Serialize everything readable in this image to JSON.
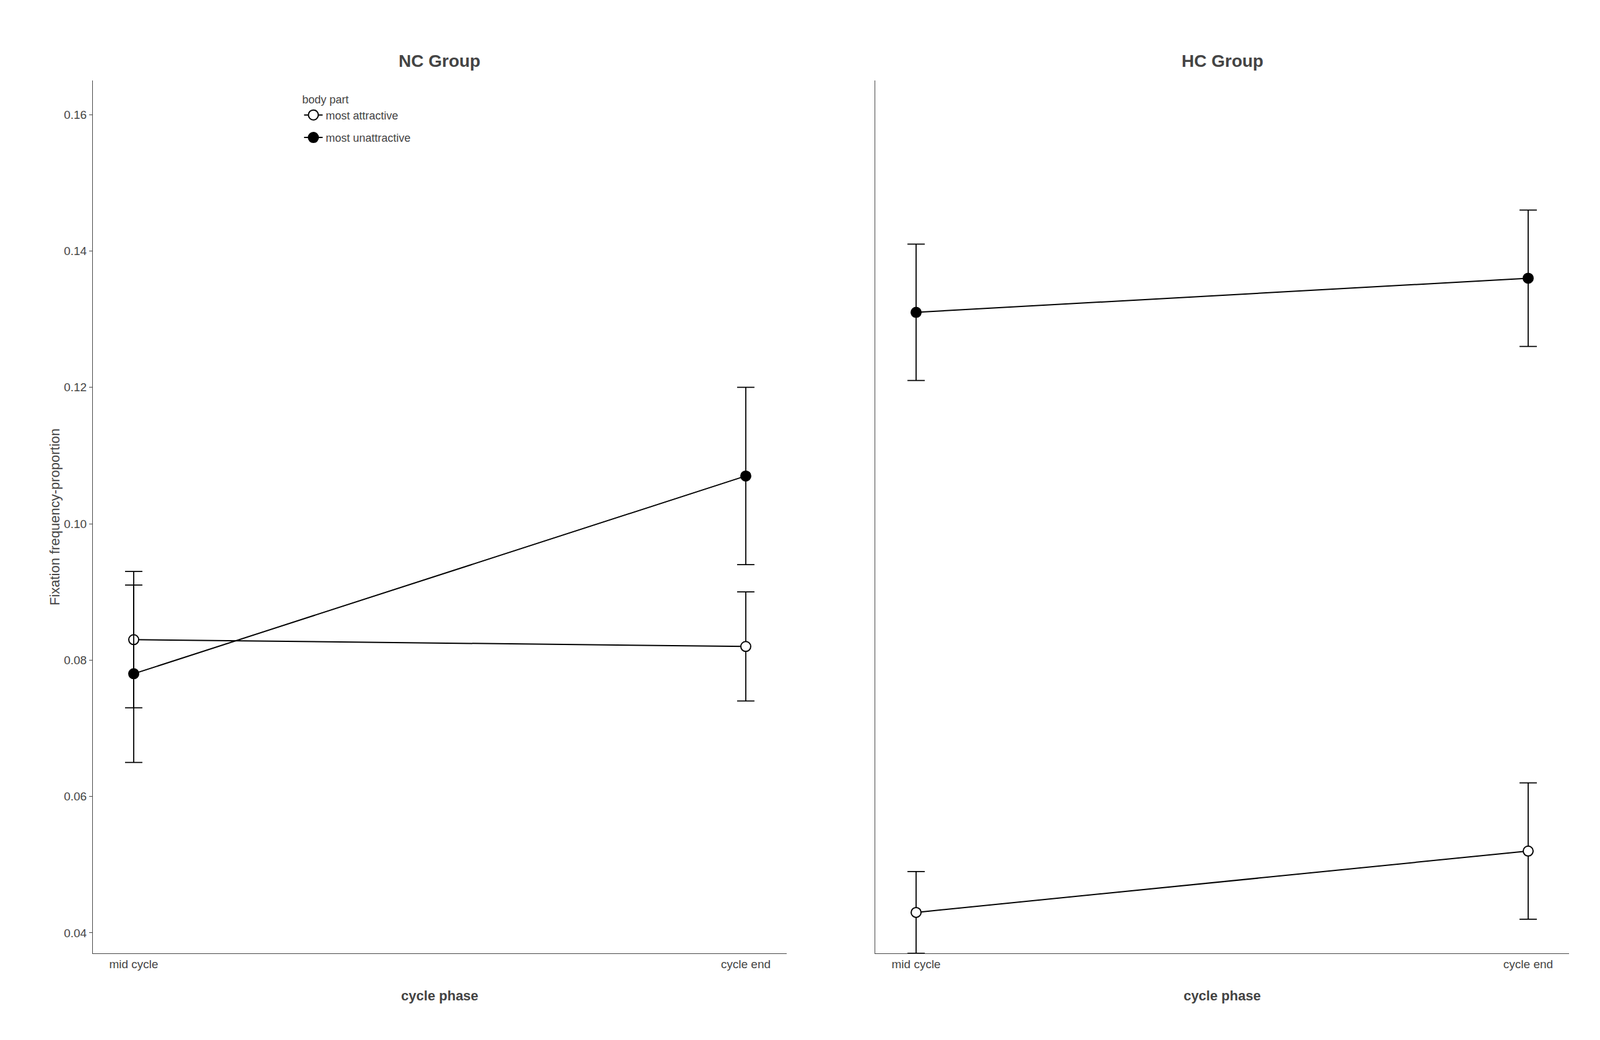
{
  "chart_data": [
    {
      "type": "line",
      "title": "NC Group",
      "xlabel": "cycle phase",
      "ylabel": "Fixation frequency-proportion",
      "categories": [
        "mid cycle",
        "cycle end"
      ],
      "series": [
        {
          "name": "most attractive",
          "color": "black",
          "marker": "circle-open",
          "line_style": "solid",
          "values": [
            0.083,
            0.082
          ],
          "errors": [
            0.01,
            0.008
          ]
        },
        {
          "name": "most unattractive",
          "color": "black",
          "marker": "circle",
          "line_style": "solid",
          "values": [
            0.078,
            0.107
          ],
          "errors": [
            0.013,
            0.013
          ]
        }
      ],
      "ylim": [
        0.037,
        0.165
      ],
      "yticks": [
        0.04,
        0.06,
        0.08,
        {
          "value": 0.1,
          "label": "0.10"
        },
        0.12,
        0.14,
        0.16
      ],
      "grid": false,
      "legend": "upper left",
      "legend_title": "body part"
    },
    {
      "type": "line",
      "title": "HC Group",
      "xlabel": "cycle phase",
      "categories": [
        "mid cycle",
        "cycle end"
      ],
      "series": [
        {
          "name": "most attractive",
          "color": "black",
          "marker": "circle-open",
          "line_style": "solid",
          "values": [
            0.043,
            0.052
          ],
          "errors": [
            0.006,
            0.01
          ]
        },
        {
          "name": "most unattractive",
          "color": "black",
          "marker": "circle",
          "line_style": "solid",
          "values": [
            0.131,
            0.136
          ],
          "errors": [
            0.01,
            0.01
          ]
        }
      ],
      "ylim": [
        0.037,
        0.165
      ],
      "grid": false,
      "tick_labels": "x"
    }
  ]
}
